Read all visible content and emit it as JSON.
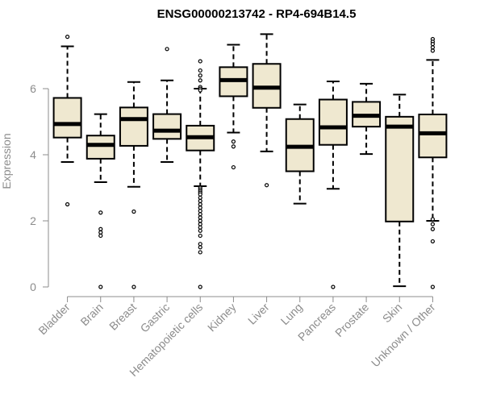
{
  "chart_data": {
    "type": "boxplot",
    "title": "ENSG00000213742 - RP4-694B14.5",
    "ylabel": "Expression",
    "xlabel": "",
    "ylim": [
      0,
      7.7
    ],
    "yticks": [
      0,
      2,
      4,
      6
    ],
    "grid": false,
    "box_fill": "#efe8d0",
    "categories": [
      "Bladder",
      "Brain",
      "Breast",
      "Gastric",
      "Hematopoietic cells",
      "Kidney",
      "Liver",
      "Lung",
      "Pancreas",
      "Prostate",
      "Skin",
      "Unknown / Other"
    ],
    "boxes": [
      {
        "q1": 4.52,
        "median": 4.93,
        "q3": 5.72,
        "whisker_low": 3.78,
        "whisker_high": 7.28,
        "outliers": [
          7.57,
          2.5
        ]
      },
      {
        "q1": 3.88,
        "median": 4.3,
        "q3": 4.58,
        "whisker_low": 3.17,
        "whisker_high": 5.23,
        "outliers": [
          2.25,
          1.75,
          1.65,
          1.55,
          0.0
        ]
      },
      {
        "q1": 4.27,
        "median": 5.08,
        "q3": 5.43,
        "whisker_low": 3.03,
        "whisker_high": 6.2,
        "outliers": [
          2.28,
          0.0
        ]
      },
      {
        "q1": 4.48,
        "median": 4.73,
        "q3": 5.23,
        "whisker_low": 3.78,
        "whisker_high": 6.25,
        "outliers": [
          7.2
        ]
      },
      {
        "q1": 4.13,
        "median": 4.53,
        "q3": 4.88,
        "whisker_low": 3.05,
        "whisker_high": 6.0,
        "outliers": [
          6.83,
          6.55,
          6.4,
          6.25,
          6.05,
          6.0,
          5.95,
          3.0,
          2.95,
          2.9,
          2.85,
          2.8,
          2.7,
          2.6,
          2.5,
          2.4,
          2.3,
          2.2,
          2.1,
          2.0,
          1.9,
          1.8,
          1.7,
          1.55,
          1.3,
          1.2,
          1.05,
          0.0
        ]
      },
      {
        "q1": 5.77,
        "median": 6.26,
        "q3": 6.65,
        "whisker_low": 4.67,
        "whisker_high": 7.33,
        "outliers": [
          4.4,
          4.25,
          3.62
        ]
      },
      {
        "q1": 5.42,
        "median": 6.03,
        "q3": 6.75,
        "whisker_low": 4.1,
        "whisker_high": 7.65,
        "outliers": [
          3.08
        ]
      },
      {
        "q1": 3.5,
        "median": 4.24,
        "q3": 5.08,
        "whisker_low": 2.52,
        "whisker_high": 5.52,
        "outliers": []
      },
      {
        "q1": 4.3,
        "median": 4.83,
        "q3": 5.67,
        "whisker_low": 2.97,
        "whisker_high": 6.22,
        "outliers": [
          0.0
        ]
      },
      {
        "q1": 4.85,
        "median": 5.18,
        "q3": 5.6,
        "whisker_low": 4.02,
        "whisker_high": 6.15,
        "outliers": []
      },
      {
        "q1": 1.98,
        "median": 4.85,
        "q3": 5.15,
        "whisker_low": 0.02,
        "whisker_high": 5.82,
        "outliers": []
      },
      {
        "q1": 3.92,
        "median": 4.65,
        "q3": 5.22,
        "whisker_low": 2.0,
        "whisker_high": 6.87,
        "outliers": [
          7.5,
          7.42,
          7.35,
          7.25,
          7.15,
          2.05,
          1.9,
          1.75,
          1.38,
          0.0
        ]
      }
    ]
  }
}
